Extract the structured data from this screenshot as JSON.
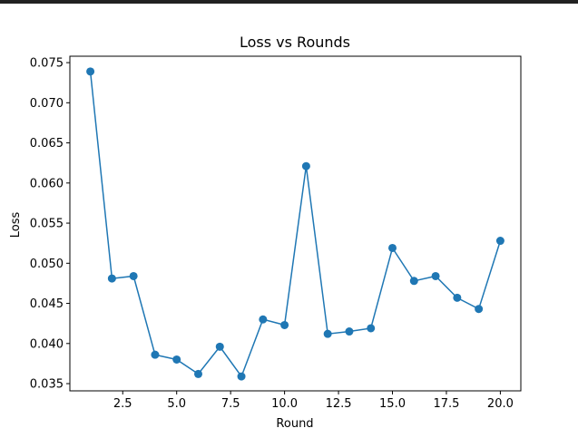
{
  "chart_data": {
    "type": "line",
    "title": "Loss vs Rounds",
    "xlabel": "Round",
    "ylabel": "Loss",
    "xlim": [
      0.05,
      20.95
    ],
    "ylim": [
      0.0341,
      0.0758
    ],
    "x_ticks": [
      2.5,
      5.0,
      7.5,
      10.0,
      12.5,
      15.0,
      17.5,
      20.0
    ],
    "x_tick_labels": [
      "2.5",
      "5.0",
      "7.5",
      "10.0",
      "12.5",
      "15.0",
      "17.5",
      "20.0"
    ],
    "y_ticks": [
      0.035,
      0.04,
      0.045,
      0.05,
      0.055,
      0.06,
      0.065,
      0.07,
      0.075
    ],
    "y_tick_labels": [
      "0.035",
      "0.040",
      "0.045",
      "0.050",
      "0.055",
      "0.060",
      "0.065",
      "0.070",
      "0.075"
    ],
    "grid": false,
    "color": "#1f77b4",
    "marker": "circle",
    "x": [
      1,
      2,
      3,
      4,
      5,
      6,
      7,
      8,
      9,
      10,
      11,
      12,
      13,
      14,
      15,
      16,
      17,
      18,
      19,
      20
    ],
    "y": [
      0.0739,
      0.0481,
      0.0484,
      0.0386,
      0.038,
      0.0362,
      0.0396,
      0.0359,
      0.043,
      0.0423,
      0.0621,
      0.0412,
      0.0415,
      0.0419,
      0.0519,
      0.0478,
      0.0484,
      0.0457,
      0.0443,
      0.0528
    ]
  }
}
